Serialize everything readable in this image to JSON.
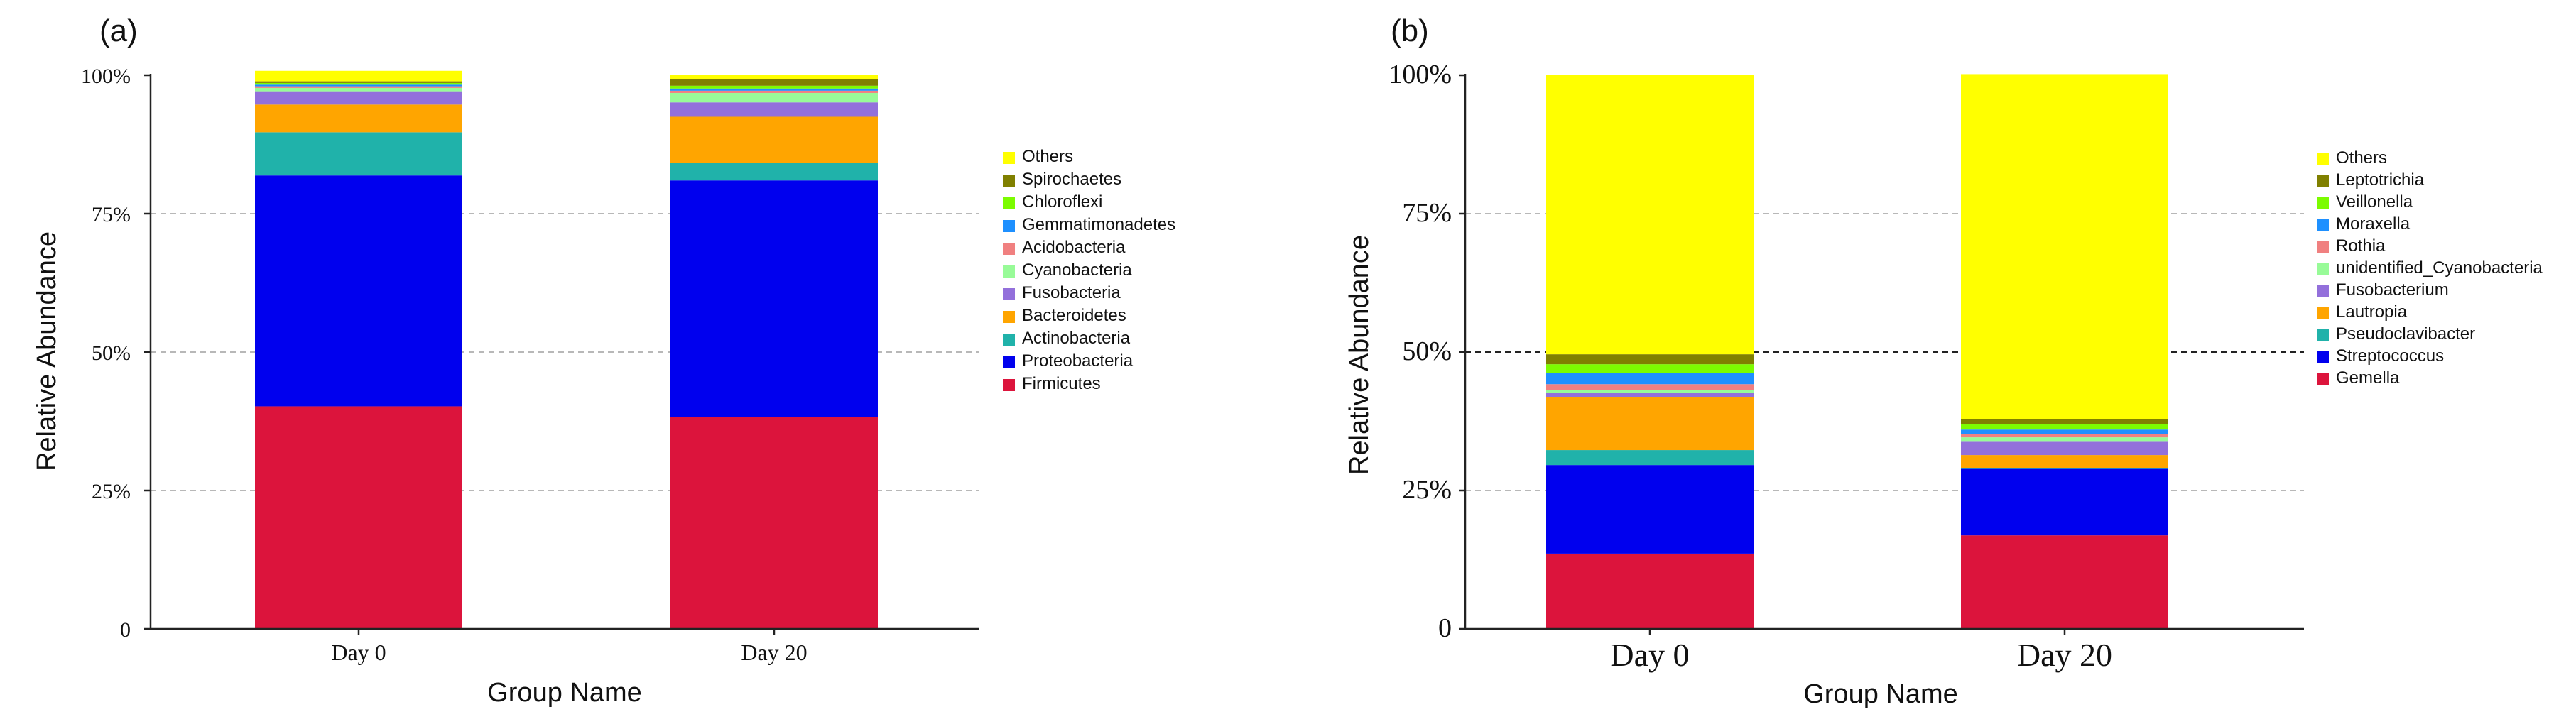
{
  "chart_data": [
    {
      "type": "bar",
      "stacked": true,
      "panel_label": "(a)",
      "xlabel": "Group Name",
      "ylabel": "Relative Abundance",
      "categories": [
        "Day 0",
        "Day 20"
      ],
      "ylim": [
        0,
        100
      ],
      "yticks": [
        0,
        25,
        50,
        75,
        100
      ],
      "ytick_labels": [
        "0",
        "25%",
        "50%",
        "75%",
        "100%"
      ],
      "gridlines": [
        25,
        50,
        75
      ],
      "series": [
        {
          "name": "Firmicutes",
          "color": "#dc143c",
          "values": [
            40.2,
            38.3
          ]
        },
        {
          "name": "Proteobacteria",
          "color": "#0000ee",
          "values": [
            41.7,
            42.7
          ]
        },
        {
          "name": "Actinobacteria",
          "color": "#20b2aa",
          "values": [
            7.8,
            3.2
          ]
        },
        {
          "name": "Bacteroidetes",
          "color": "#ffa500",
          "values": [
            5.0,
            8.3
          ]
        },
        {
          "name": "Fusobacteria",
          "color": "#9370db",
          "values": [
            2.4,
            2.6
          ]
        },
        {
          "name": "Cyanobacteria",
          "color": "#98fb98",
          "values": [
            0.6,
            1.7
          ]
        },
        {
          "name": "Acidobacteria",
          "color": "#f08080",
          "values": [
            0.3,
            0.4
          ]
        },
        {
          "name": "Gemmatimonadetes",
          "color": "#1e90ff",
          "values": [
            0.3,
            0.4
          ]
        },
        {
          "name": "Chloroflexi",
          "color": "#7cfc00",
          "values": [
            0.3,
            0.5
          ]
        },
        {
          "name": "Spirochaetes",
          "color": "#808000",
          "values": [
            0.3,
            1.2
          ]
        },
        {
          "name": "Others",
          "color": "#ffff00",
          "values": [
            1.9,
            0.7
          ]
        }
      ]
    },
    {
      "type": "bar",
      "stacked": true,
      "panel_label": "(b)",
      "xlabel": "Group Name",
      "ylabel": "Relative Abundance",
      "categories": [
        "Day 0",
        "Day 20"
      ],
      "ylim": [
        0,
        100
      ],
      "yticks": [
        0,
        25,
        50,
        75,
        100
      ],
      "ytick_labels": [
        "0",
        "25%",
        "50%",
        "75%",
        "100%"
      ],
      "gridlines": [
        25,
        50,
        75
      ],
      "series": [
        {
          "name": "Gemella",
          "color": "#dc143c",
          "values": [
            13.6,
            16.9
          ]
        },
        {
          "name": "Streptococcus",
          "color": "#0000ee",
          "values": [
            16.0,
            12.0
          ]
        },
        {
          "name": "Pseudoclavibacter",
          "color": "#20b2aa",
          "values": [
            2.7,
            0.2
          ]
        },
        {
          "name": "Lautropia",
          "color": "#ffa500",
          "values": [
            9.5,
            2.3
          ]
        },
        {
          "name": "Fusobacterium",
          "color": "#9370db",
          "values": [
            0.8,
            2.4
          ]
        },
        {
          "name": "unidentified_Cyanobacteria",
          "color": "#98fb98",
          "values": [
            0.6,
            0.8
          ]
        },
        {
          "name": "Rothia",
          "color": "#f08080",
          "values": [
            1.0,
            0.6
          ]
        },
        {
          "name": "Moraxella",
          "color": "#1e90ff",
          "values": [
            2.0,
            0.8
          ]
        },
        {
          "name": "Veillonella",
          "color": "#7cfc00",
          "values": [
            1.6,
            1.0
          ]
        },
        {
          "name": "Leptotrichia",
          "color": "#808000",
          "values": [
            1.8,
            0.9
          ]
        },
        {
          "name": "Others",
          "color": "#ffff00",
          "values": [
            50.4,
            62.3
          ]
        }
      ]
    }
  ]
}
